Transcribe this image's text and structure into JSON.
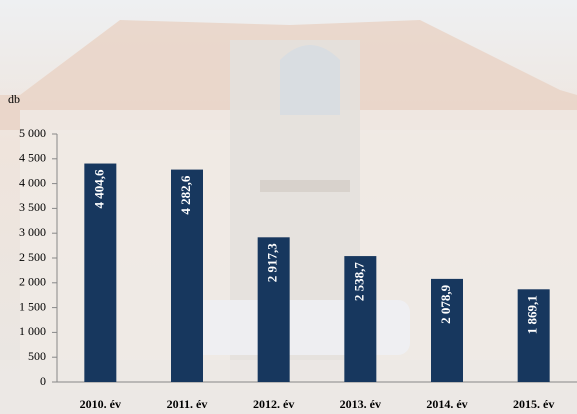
{
  "chart_data": {
    "type": "bar",
    "y_axis_label": "db",
    "categories": [
      "2010. év",
      "2011. év",
      "2012. év",
      "2013. év",
      "2014. év",
      "2015. év"
    ],
    "values": [
      4404.6,
      4282.6,
      2917.3,
      2538.7,
      2078.9,
      1869.1
    ],
    "value_labels": [
      "4 404,6",
      "4 282,6",
      "2 917,3",
      "2 538,7",
      "2 078,9",
      "1 869,1"
    ],
    "color": "#17375e",
    "ylim": [
      0,
      5000
    ],
    "yticks": [
      0,
      500,
      {
        "value": 1000,
        "label": "1 000"
      },
      {
        "value": 1500,
        "label": "1 500"
      },
      {
        "value": 2000,
        "label": "2 000"
      },
      {
        "value": 2500,
        "label": "2 500"
      },
      {
        "value": 3000,
        "label": "3 000"
      },
      {
        "value": 3500,
        "label": "3 500"
      },
      {
        "value": 4000,
        "label": "4 000"
      },
      {
        "value": 4500,
        "label": "4 500"
      },
      {
        "value": 5000,
        "label": "5 000"
      }
    ]
  }
}
